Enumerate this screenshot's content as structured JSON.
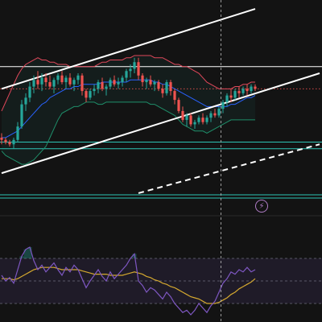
{
  "colors": {
    "background": "#131313",
    "up": "#26a69a",
    "down": "#ef5350",
    "bb_upper": "#e0475a",
    "bb_basis": "#2962ff",
    "bb_lower": "#1f8f6a",
    "band_fill": "rgba(38,166,154,0.07)",
    "hline_white": "#ffffff",
    "hline_teal": "#2ec4b6",
    "hline_red_dotted": "#ef5350",
    "crosshair": "#bdbdbd",
    "rsi": "#7e57c2",
    "rsi_ma": "#d4a82f",
    "rsi_band_fill": "rgba(126,87,194,0.12)",
    "rsi_guides": "#6c6c7c",
    "overbought_fill": "rgba(38,166,154,0.35)"
  },
  "badge": {
    "icon": "lightning-bolt-icon",
    "glyph": "⚡"
  },
  "chart_data": [
    {
      "type": "candlestick",
      "x": [
        1,
        2,
        3,
        4,
        5,
        6,
        7,
        8,
        9,
        10,
        11,
        12,
        13,
        14,
        15,
        16,
        17,
        18,
        19,
        20,
        21,
        22,
        23,
        24,
        25,
        26,
        27,
        28,
        29,
        30,
        31,
        32,
        33,
        34,
        35,
        36,
        37,
        38,
        39,
        40,
        41,
        42,
        43,
        44,
        45,
        46,
        47,
        48,
        49,
        50,
        51,
        52,
        53,
        54,
        55,
        56,
        57,
        58,
        59,
        60,
        61,
        62,
        63,
        64
      ],
      "ohlc": [
        [
          178,
          180,
          175,
          177
        ],
        [
          177,
          178,
          175,
          176
        ],
        [
          176,
          177,
          174,
          175
        ],
        [
          175,
          178,
          173,
          177
        ],
        [
          177,
          185,
          176,
          183
        ],
        [
          183,
          195,
          182,
          193
        ],
        [
          193,
          198,
          190,
          196
        ],
        [
          196,
          203,
          194,
          201
        ],
        [
          201,
          206,
          198,
          204
        ],
        [
          204,
          208,
          200,
          202
        ],
        [
          202,
          207,
          199,
          205
        ],
        [
          205,
          207,
          201,
          203
        ],
        [
          203,
          206,
          200,
          201
        ],
        [
          201,
          205,
          198,
          204
        ],
        [
          204,
          207,
          202,
          206
        ],
        [
          206,
          208,
          202,
          203
        ],
        [
          203,
          206,
          200,
          205
        ],
        [
          205,
          207,
          201,
          202
        ],
        [
          202,
          205,
          199,
          204
        ],
        [
          204,
          207,
          202,
          206
        ],
        [
          206,
          207,
          197,
          199
        ],
        [
          199,
          200,
          194,
          196
        ],
        [
          196,
          200,
          195,
          199
        ],
        [
          199,
          202,
          197,
          200
        ],
        [
          200,
          204,
          198,
          203
        ],
        [
          203,
          205,
          199,
          200
        ],
        [
          200,
          202,
          197,
          201
        ],
        [
          201,
          205,
          200,
          204
        ],
        [
          204,
          206,
          201,
          202
        ],
        [
          202,
          205,
          200,
          203
        ],
        [
          203,
          206,
          201,
          205
        ],
        [
          205,
          209,
          203,
          208
        ],
        [
          208,
          211,
          205,
          209
        ],
        [
          209,
          214,
          207,
          212
        ],
        [
          212,
          214,
          204,
          206
        ],
        [
          206,
          207,
          201,
          203
        ],
        [
          203,
          205,
          200,
          204
        ],
        [
          204,
          206,
          201,
          202
        ],
        [
          202,
          204,
          199,
          203
        ],
        [
          203,
          204,
          199,
          200
        ],
        [
          200,
          202,
          196,
          198
        ],
        [
          198,
          204,
          197,
          203
        ],
        [
          203,
          204,
          197,
          199
        ],
        [
          199,
          200,
          193,
          195
        ],
        [
          195,
          196,
          189,
          190
        ],
        [
          190,
          192,
          185,
          186
        ],
        [
          186,
          189,
          183,
          188
        ],
        [
          188,
          189,
          183,
          184
        ],
        [
          184,
          186,
          182,
          185
        ],
        [
          185,
          188,
          184,
          187
        ],
        [
          187,
          189,
          184,
          185
        ],
        [
          185,
          188,
          184,
          187
        ],
        [
          187,
          190,
          185,
          189
        ],
        [
          189,
          191,
          187,
          188
        ],
        [
          188,
          192,
          187,
          191
        ],
        [
          191,
          195,
          189,
          194
        ],
        [
          194,
          198,
          192,
          197
        ],
        [
          197,
          200,
          194,
          196
        ],
        [
          196,
          200,
          195,
          199
        ],
        [
          199,
          201,
          196,
          198
        ],
        [
          198,
          201,
          197,
          200
        ],
        [
          200,
          202,
          197,
          199
        ],
        [
          199,
          202,
          198,
          201
        ],
        [
          201,
          202,
          199,
          200
        ]
      ],
      "bb_upper": [
        190,
        194,
        198,
        202,
        206,
        209,
        211,
        212,
        213,
        214,
        213,
        213,
        212,
        212,
        211,
        211,
        211,
        210,
        210,
        210,
        210,
        210,
        210,
        210,
        211,
        212,
        212,
        213,
        213,
        213,
        213,
        214,
        214,
        215,
        215,
        215,
        215,
        215,
        214,
        214,
        214,
        213,
        212,
        211,
        211,
        210,
        210,
        209,
        208,
        207,
        205,
        203,
        202,
        201,
        200,
        200,
        200,
        200,
        201,
        201,
        202,
        202,
        203,
        203
      ],
      "bb_basis": [
        178,
        178,
        179,
        180,
        181,
        183,
        185,
        187,
        189,
        191,
        193,
        194,
        196,
        197,
        198,
        199,
        200,
        200,
        201,
        201,
        202,
        202,
        202,
        202,
        202,
        203,
        203,
        203,
        203,
        203,
        203,
        203,
        204,
        204,
        204,
        204,
        204,
        204,
        203,
        203,
        202,
        202,
        201,
        200,
        199,
        198,
        197,
        196,
        195,
        194,
        193,
        192,
        192,
        192,
        192,
        192,
        192,
        193,
        193,
        194,
        195,
        196,
        196,
        197
      ],
      "bb_lower": [
        172,
        170,
        169,
        168,
        167,
        166,
        166,
        167,
        168,
        170,
        172,
        174,
        178,
        182,
        186,
        189,
        190,
        191,
        192,
        192,
        193,
        194,
        194,
        194,
        193,
        193,
        194,
        194,
        194,
        194,
        194,
        194,
        194,
        194,
        194,
        194,
        194,
        193,
        193,
        192,
        191,
        190,
        189,
        188,
        186,
        184,
        183,
        182,
        181,
        181,
        181,
        180,
        181,
        182,
        183,
        184,
        185,
        186,
        186,
        186,
        186,
        186,
        186,
        186
      ],
      "hlines": [
        {
          "price": 210,
          "color": "white"
        },
        {
          "price": 200,
          "color": "red-dotted"
        },
        {
          "price": 176,
          "color": "teal"
        },
        {
          "price": 173,
          "color": "teal"
        }
      ],
      "trendlines": [
        {
          "from": [
            1,
            200
          ],
          "to": [
            64,
            236
          ],
          "style": "solid"
        },
        {
          "from": [
            1,
            162
          ],
          "to": [
            80,
            207
          ],
          "style": "solid"
        },
        {
          "from": [
            35,
            153
          ],
          "to": [
            80,
            175
          ],
          "style": "dashed"
        }
      ],
      "crosshair_x": 55.5,
      "ylim": [
        145,
        240
      ]
    },
    {
      "type": "line",
      "x": [
        1,
        2,
        3,
        4,
        5,
        6,
        7,
        8,
        9,
        10,
        11,
        12,
        13,
        14,
        15,
        16,
        17,
        18,
        19,
        20,
        21,
        22,
        23,
        24,
        25,
        26,
        27,
        28,
        29,
        30,
        31,
        32,
        33,
        34,
        35,
        36,
        37,
        38,
        39,
        40,
        41,
        42,
        43,
        44,
        45,
        46,
        47,
        48,
        49,
        50,
        51,
        52,
        53,
        54,
        55,
        56,
        57,
        58,
        59,
        60,
        61,
        62,
        63,
        64
      ],
      "series": [
        {
          "values": [
            55,
            50,
            53,
            48,
            60,
            72,
            78,
            80,
            68,
            60,
            64,
            58,
            62,
            66,
            60,
            55,
            62,
            58,
            64,
            60,
            52,
            44,
            50,
            55,
            60,
            54,
            50,
            58,
            52,
            56,
            60,
            64,
            70,
            74,
            50,
            46,
            40,
            44,
            42,
            38,
            34,
            40,
            36,
            30,
            26,
            22,
            24,
            20,
            24,
            30,
            26,
            22,
            28,
            32,
            40,
            48,
            52,
            58,
            56,
            60,
            58,
            62,
            58,
            60
          ]
        },
        {
          "values": [
            52,
            52,
            52,
            51,
            52,
            54,
            56,
            58,
            60,
            61,
            62,
            62,
            62,
            62,
            61,
            60,
            60,
            60,
            60,
            60,
            59,
            58,
            57,
            56,
            56,
            56,
            56,
            55,
            55,
            55,
            55,
            56,
            57,
            58,
            57,
            56,
            54,
            53,
            51,
            50,
            48,
            47,
            45,
            44,
            42,
            40,
            38,
            36,
            35,
            34,
            32,
            30,
            30,
            30,
            31,
            33,
            35,
            38,
            40,
            43,
            45,
            47,
            49,
            52
          ]
        }
      ],
      "guides": [
        70,
        50,
        30
      ],
      "ylim": [
        15,
        85
      ]
    }
  ]
}
